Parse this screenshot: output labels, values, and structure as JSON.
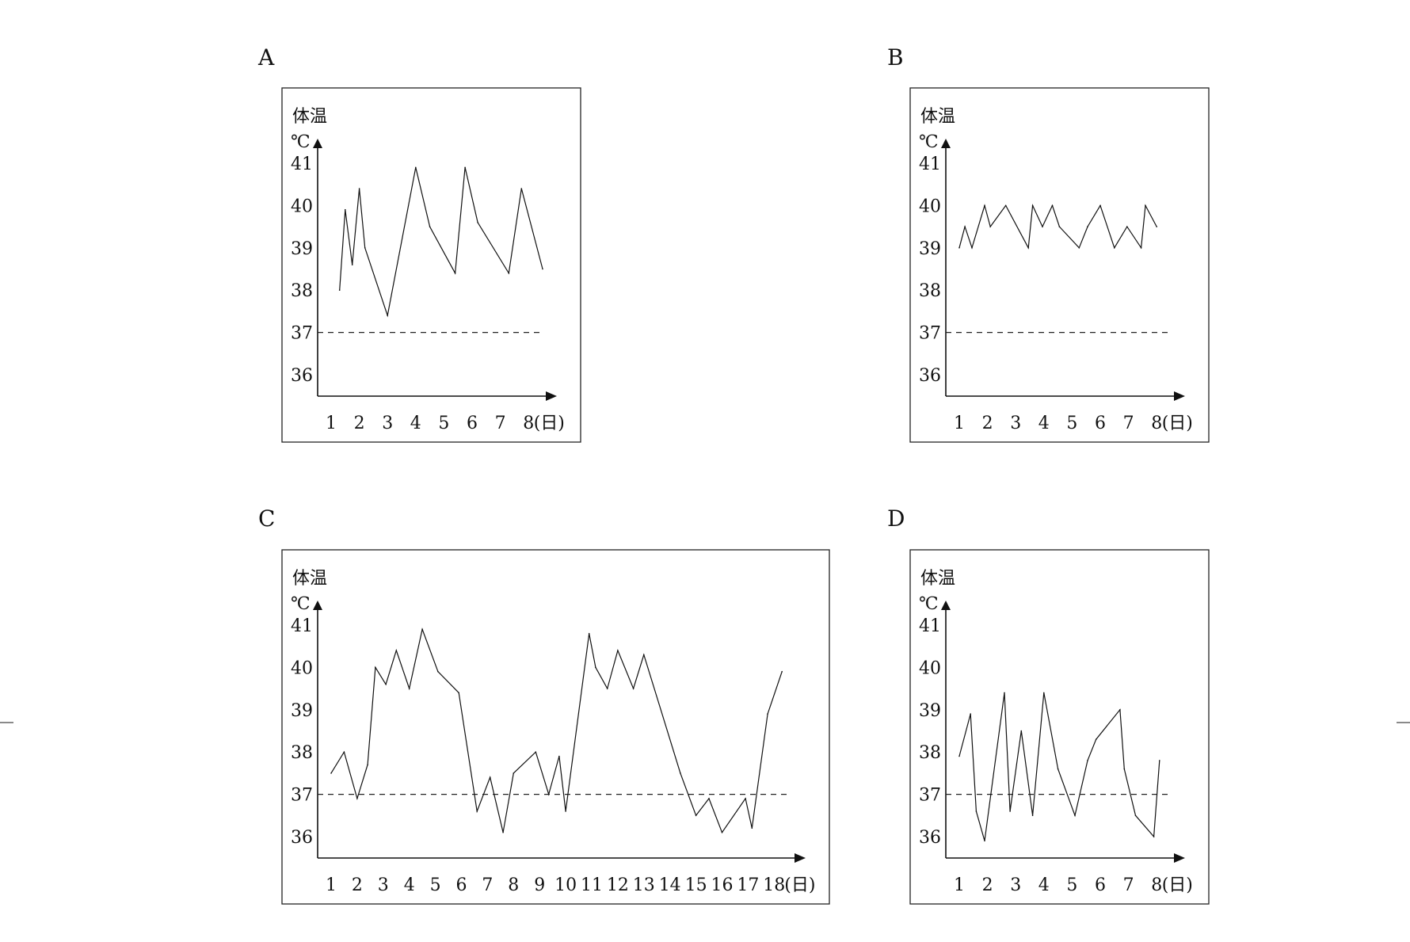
{
  "chart_data": [
    {
      "type": "line",
      "panel": "A",
      "ylabel": "体温",
      "yunit": "℃",
      "xunit": "(日)",
      "ylim": [
        35.5,
        41.5
      ],
      "yticks": [
        41,
        40,
        39,
        38,
        37,
        36
      ],
      "xticks": [
        "1",
        "2",
        "3",
        "4",
        "5",
        "6",
        "7",
        "8"
      ],
      "reference_line": 37,
      "series": [
        {
          "x": [
            1.3,
            1.5,
            1.75,
            2.0,
            2.2,
            3.0,
            4.0,
            4.5,
            5.4,
            5.75,
            6.2,
            7.3,
            7.75,
            8.5
          ],
          "y": [
            38.0,
            39.9,
            38.6,
            40.4,
            39.0,
            37.4,
            40.9,
            39.5,
            38.4,
            40.9,
            39.6,
            38.4,
            40.4,
            38.5
          ]
        }
      ]
    },
    {
      "type": "line",
      "panel": "B",
      "ylabel": "体温",
      "yunit": "℃",
      "xunit": "(日)",
      "ylim": [
        35.5,
        41.5
      ],
      "yticks": [
        41,
        40,
        39,
        38,
        37,
        36
      ],
      "xticks": [
        "1",
        "2",
        "3",
        "4",
        "5",
        "6",
        "7",
        "8"
      ],
      "reference_line": 37,
      "series": [
        {
          "x": [
            1.0,
            1.2,
            1.45,
            1.9,
            2.1,
            2.65,
            3.45,
            3.6,
            3.95,
            4.3,
            4.55,
            5.25,
            5.55,
            6.0,
            6.5,
            6.95,
            7.45,
            7.6,
            8.0
          ],
          "y": [
            39.0,
            39.5,
            39.0,
            40.0,
            39.5,
            40.0,
            39.0,
            40.0,
            39.5,
            40.0,
            39.5,
            39.0,
            39.5,
            40.0,
            39.0,
            39.5,
            39.0,
            40.0,
            39.5
          ]
        }
      ]
    },
    {
      "type": "line",
      "panel": "C",
      "ylabel": "体温",
      "yunit": "℃",
      "xunit": "(日)",
      "ylim": [
        35.5,
        41.5
      ],
      "yticks": [
        41,
        40,
        39,
        38,
        37,
        36
      ],
      "xticks": [
        "1",
        "2",
        "3",
        "4",
        "5",
        "6",
        "7",
        "8",
        "9",
        "10",
        "11",
        "12",
        "13",
        "14",
        "15",
        "16",
        "17",
        "18"
      ],
      "reference_line": 37,
      "series": [
        {
          "x": [
            1.0,
            1.5,
            2.0,
            2.4,
            2.7,
            3.1,
            3.5,
            4.0,
            4.5,
            5.1,
            5.9,
            6.6,
            7.1,
            7.6,
            8.0,
            8.85,
            9.35,
            9.75,
            10.0,
            10.9,
            11.15,
            11.6,
            12.0,
            12.6,
            13.0,
            14.4,
            15.0,
            15.5,
            16.0,
            16.9,
            17.15,
            17.75,
            18.3
          ],
          "y": [
            37.5,
            38.0,
            36.9,
            37.7,
            40.0,
            39.6,
            40.4,
            39.5,
            40.9,
            39.9,
            39.4,
            36.6,
            37.4,
            36.1,
            37.5,
            38.0,
            37.0,
            37.9,
            36.6,
            40.8,
            40.0,
            39.5,
            40.4,
            39.5,
            40.3,
            37.5,
            36.5,
            36.9,
            36.1,
            36.9,
            36.2,
            38.9,
            39.9
          ]
        }
      ]
    },
    {
      "type": "line",
      "panel": "D",
      "ylabel": "体温",
      "yunit": "℃",
      "xunit": "(日)",
      "ylim": [
        35.5,
        41.5
      ],
      "yticks": [
        41,
        40,
        39,
        38,
        37,
        36
      ],
      "xticks": [
        "1",
        "2",
        "3",
        "4",
        "5",
        "6",
        "7",
        "8"
      ],
      "reference_line": 37,
      "series": [
        {
          "x": [
            1.0,
            1.4,
            1.6,
            1.9,
            2.6,
            2.8,
            3.2,
            3.6,
            4.0,
            4.5,
            5.1,
            5.55,
            5.85,
            6.7,
            6.85,
            7.25,
            7.9,
            8.1
          ],
          "y": [
            37.9,
            38.9,
            36.6,
            35.9,
            39.4,
            36.6,
            38.5,
            36.5,
            39.4,
            37.6,
            36.5,
            37.8,
            38.3,
            39.0,
            37.6,
            36.5,
            36.0,
            37.8
          ]
        }
      ]
    }
  ]
}
